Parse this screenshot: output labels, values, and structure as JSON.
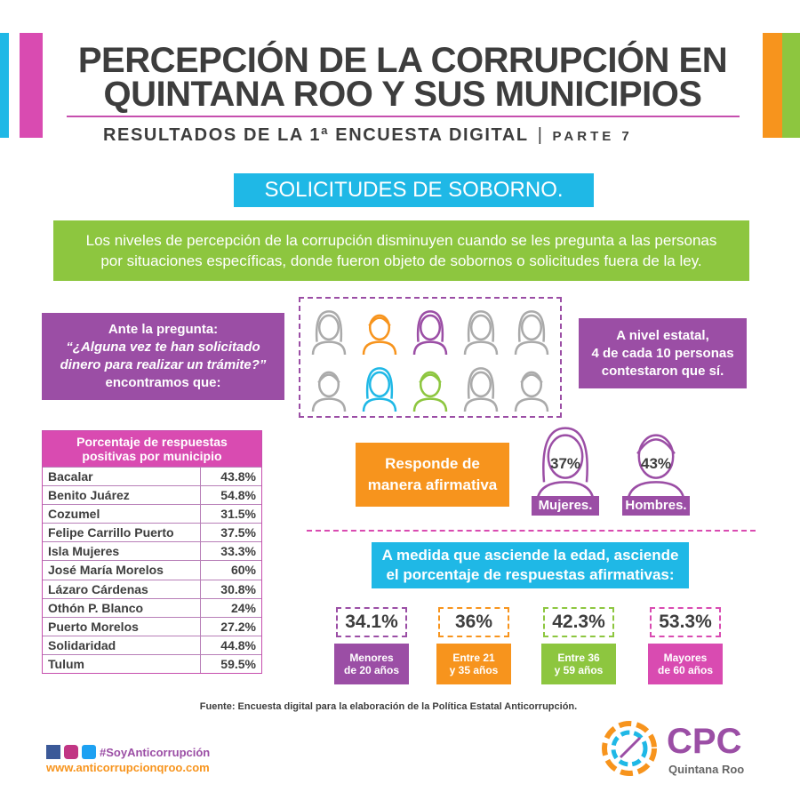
{
  "header": {
    "title_lines": [
      "PERCEPCIÓN DE LA CORRUPCIÓN EN",
      "QUINTANA ROO Y SUS MUNICIPIOS"
    ],
    "subtitle": "RESULTADOS DE LA 1ª ENCUESTA DIGITAL",
    "part": "PARTE 7"
  },
  "section_title": "SOLICITUDES DE SOBORNO.",
  "intro_lines": [
    "Los niveles de percepción de la corrupción disminuyen cuando se les pregunta a las personas",
    "por situaciones específicas, donde fueron objeto de sobornos o solicitudes fuera de la ley."
  ],
  "question_lines": [
    "Ante la pregunta:",
    "“¿Alguna vez te han solicitado",
    "dinero para realizar un trámite?”",
    "encontramos que:"
  ],
  "state_result_lines": [
    "A nivel estatal,",
    "4 de cada 10 personas",
    "contestaron que sí."
  ],
  "table": {
    "header_lines": [
      "Porcentaje de respuestas",
      "positivas por municipio"
    ],
    "rows": [
      [
        "Bacalar",
        "43.8%"
      ],
      [
        "Benito Juárez",
        "54.8%"
      ],
      [
        "Cozumel",
        "31.5%"
      ],
      [
        "Felipe Carrillo Puerto",
        "37.5%"
      ],
      [
        "Isla Mujeres",
        "33.3%"
      ],
      [
        "José María Morelos",
        "60%"
      ],
      [
        "Lázaro Cárdenas",
        "30.8%"
      ],
      [
        "Othón P. Blanco",
        "24%"
      ],
      [
        "Puerto Morelos",
        "27.2%"
      ],
      [
        "Solidaridad",
        "44.8%"
      ],
      [
        "Tulum",
        "59.5%"
      ]
    ]
  },
  "gender": {
    "label_lines": [
      "Responde de",
      "manera afirmativa"
    ],
    "items": [
      {
        "value": "37%",
        "label": "Mujeres."
      },
      {
        "value": "43%",
        "label": "Hombres."
      }
    ]
  },
  "age": {
    "title_lines": [
      "A medida que asciende la edad, asciende",
      "el porcentaje de respuestas afirmativas:"
    ],
    "groups": [
      {
        "value": "34.1%",
        "label_lines": [
          "Menores",
          "de 20 años"
        ]
      },
      {
        "value": "36%",
        "label_lines": [
          "Entre 21",
          "y 35 años"
        ]
      },
      {
        "value": "42.3%",
        "label_lines": [
          "Entre 36",
          "y 59 años"
        ]
      },
      {
        "value": "53.3%",
        "label_lines": [
          "Mayores",
          "de 60 años"
        ]
      }
    ]
  },
  "source": "Fuente: Encuesta digital para la elaboración de  la Política Estatal Anticorrupción.",
  "footer": {
    "hashtag": "#SoyAnticorrupción",
    "url": "www.anticorrupcionqroo.com",
    "logo": "CPC",
    "logo_subtitle": "Quintana Roo"
  }
}
